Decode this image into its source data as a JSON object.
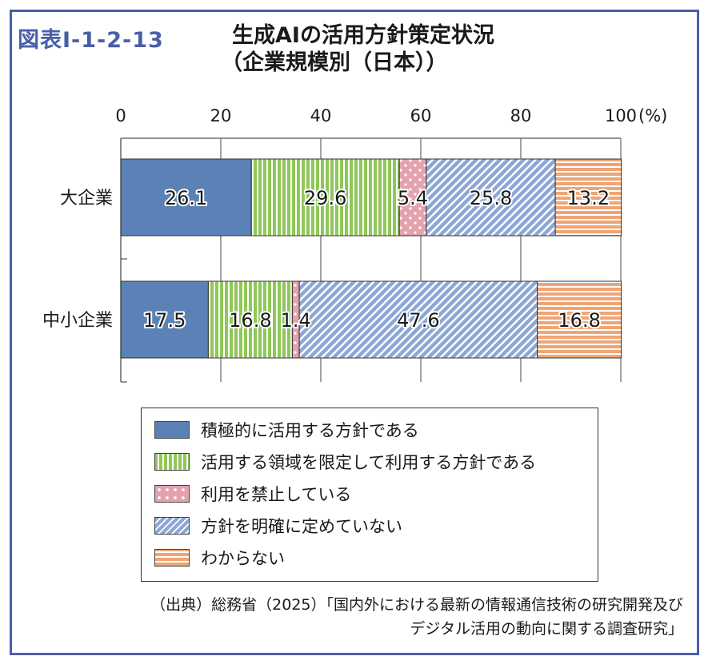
{
  "figure_label": "図表Ⅰ-1-2-13",
  "title_line1": "生成AIの活用方針策定状況",
  "title_line2": "（企業規模別（日本））",
  "source_line1": "（出典）総務省（2025）「国内外における最新の情報通信技術の研究開発及び",
  "source_line2": "デジタル活用の動向に関する調査研究」",
  "chart_data": {
    "type": "bar",
    "orientation": "horizontal",
    "stacked": true,
    "categories": [
      "大企業",
      "中小企業"
    ],
    "series": [
      {
        "name": "積極的に活用する方針である",
        "values": [
          26.1,
          17.5
        ],
        "color": "#5b82b6",
        "pattern": "solid"
      },
      {
        "name": "活用する領域を限定して利用する方針である",
        "values": [
          29.6,
          16.8
        ],
        "color": "#8fc759",
        "pattern": "vertical-stripes"
      },
      {
        "name": "利用を禁止している",
        "values": [
          5.4,
          1.4
        ],
        "color": "#e3a3ae",
        "pattern": "dots"
      },
      {
        "name": "方針を明確に定めていない",
        "values": [
          25.8,
          47.6
        ],
        "color": "#8da6d4",
        "pattern": "diagonal-stripes"
      },
      {
        "name": "わからない",
        "values": [
          13.2,
          16.8
        ],
        "color": "#efa574",
        "pattern": "horizontal-stripes"
      }
    ],
    "x_ticks": [
      "0",
      "20",
      "40",
      "60",
      "80",
      "100"
    ],
    "x_unit": "(%)",
    "xlim": [
      0,
      100
    ],
    "grid": true,
    "legend_position": "bottom"
  }
}
